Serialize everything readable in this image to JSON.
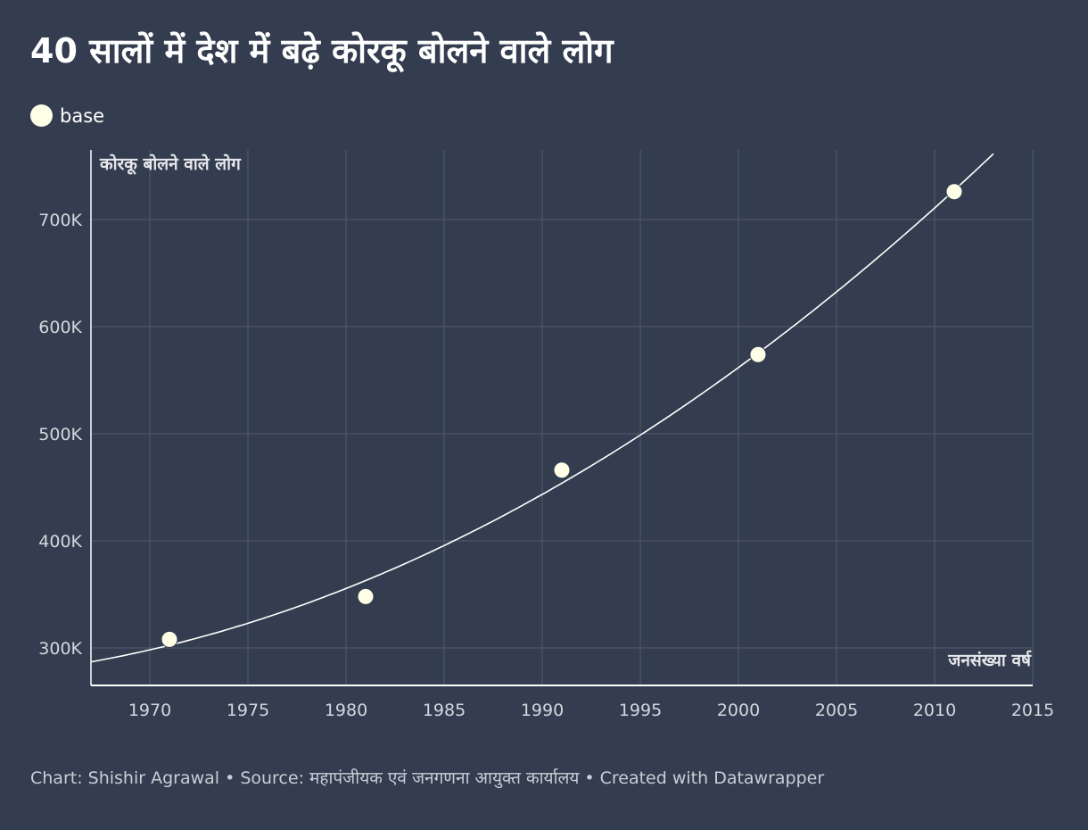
{
  "title": "40 सालों में देश में बढ़े कोरकू बोलने वाले लोग",
  "legend": {
    "label": "base",
    "color": "#ffffe8"
  },
  "footer": {
    "chart_credit": "Chart: Shishir Agrawal",
    "source": "Source: महापंजीयक एवं जनगणना आयुक्त कार्यालय",
    "tool": "Created with Datawrapper",
    "separator": "•"
  },
  "chart_data": {
    "type": "scatter",
    "title": "40 सालों में देश में बढ़े कोरकू बोलने वाले लोग",
    "xlabel": "जनसंख्या वर्ष",
    "ylabel": "कोरकू बोलने वाले लोग",
    "xlim": [
      1967,
      2015
    ],
    "ylim": [
      265000,
      765000
    ],
    "x_ticks": [
      1970,
      1975,
      1980,
      1985,
      1990,
      1995,
      2000,
      2005,
      2010,
      2015
    ],
    "y_ticks": [
      300000,
      400000,
      500000,
      600000,
      700000
    ],
    "y_tick_labels": [
      "300K",
      "400K",
      "500K",
      "600K",
      "700K"
    ],
    "grid": true,
    "legend_position": "top-left",
    "series": [
      {
        "name": "base",
        "color": "#ffffe8",
        "points": [
          {
            "x": 1971,
            "y": 308000
          },
          {
            "x": 1981,
            "y": 348000
          },
          {
            "x": 1991,
            "y": 466000
          },
          {
            "x": 2001,
            "y": 574000
          },
          {
            "x": 2011,
            "y": 726000
          }
        ]
      }
    ],
    "trendline": {
      "type": "quadratic",
      "color": "#ffffff"
    }
  }
}
